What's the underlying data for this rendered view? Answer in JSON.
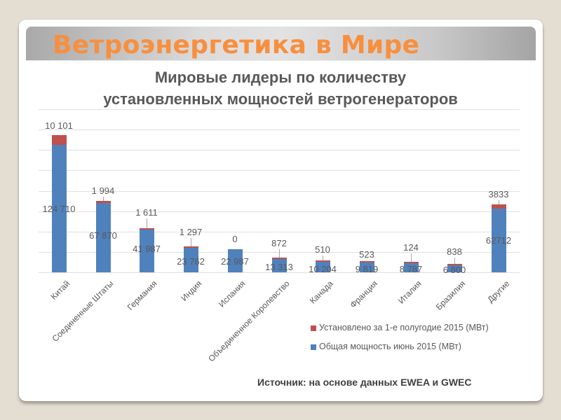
{
  "slide": {
    "title": "Ветроэнергетика в Мире",
    "title_color": "#f88f3e",
    "source": "Источник: на основе данных EWEA и GWEC"
  },
  "chart_data": {
    "type": "bar",
    "stacked": true,
    "title": "Мировые лидеры по количеству установленных мощностей ветрогенераторов",
    "title_lines": [
      "Мировые лидеры по количеству",
      "установленных мощностей ветрогенераторов"
    ],
    "xlabel": "",
    "ylabel": "",
    "ylim": [
      0,
      160000
    ],
    "y_gridline_step": 20000,
    "grid": true,
    "y_axis_labels_visible": false,
    "legend_position": "bottom-right",
    "categories": [
      "Китай",
      "Соединенные Штаты",
      "Германия",
      "Индия",
      "Испания",
      "Объединенное Королевство",
      "Канада",
      "Франция",
      "Италия",
      "Бразилия",
      "Другие"
    ],
    "series": [
      {
        "name": "Общая мощность июнь 2015 (МВт)",
        "color": "#4f81bd",
        "values": [
          124710,
          67870,
          41987,
          23762,
          22987,
          13313,
          10204,
          9819,
          8787,
          6800,
          62712
        ],
        "labels": [
          "124 710",
          "67 870",
          "41 987",
          "23 762",
          "22 987",
          "13 313",
          "10 204",
          "9 819",
          "8 787",
          "6 800",
          "62712"
        ]
      },
      {
        "name": "Установлено за 1-е полугодие 2015 (МВт)",
        "color": "#c0504d",
        "values": [
          10101,
          1994,
          1611,
          1297,
          0,
          872,
          510,
          523,
          124,
          838,
          3833
        ],
        "labels": [
          "10 101",
          "1 994",
          "1 611",
          "1 297",
          "0",
          "872",
          "510",
          "523",
          "124",
          "838",
          "3833"
        ]
      }
    ],
    "legend": [
      {
        "label": "Установлено за 1-е полугодие 2015 (МВт)",
        "color": "#c0504d"
      },
      {
        "label": "Общая мощность июнь 2015 (МВт)",
        "color": "#4f81bd"
      }
    ]
  }
}
